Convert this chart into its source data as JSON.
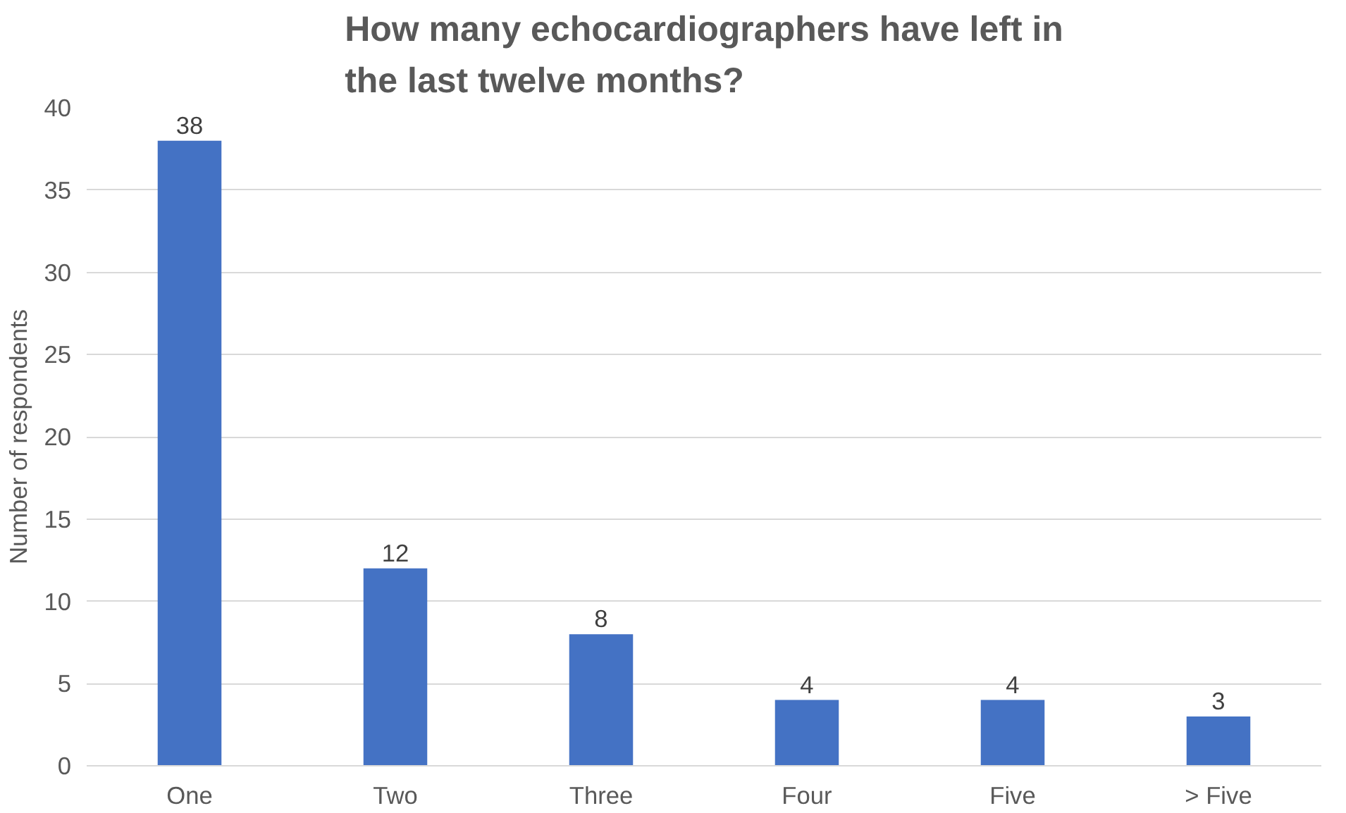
{
  "chart_data": {
    "type": "bar",
    "title": "How many echocardiographers have left in the last twelve months?",
    "ylabel": "Number of respondents",
    "categories": [
      "One",
      "Two",
      "Three",
      "Four",
      "Five",
      "> Five"
    ],
    "values": [
      38,
      12,
      8,
      4,
      4,
      3
    ],
    "color": "#4472c4",
    "ylim": [
      0,
      40
    ],
    "yticks": [
      0,
      5,
      10,
      15,
      20,
      25,
      30,
      35,
      40
    ],
    "grid": "y",
    "data_labels": true
  }
}
